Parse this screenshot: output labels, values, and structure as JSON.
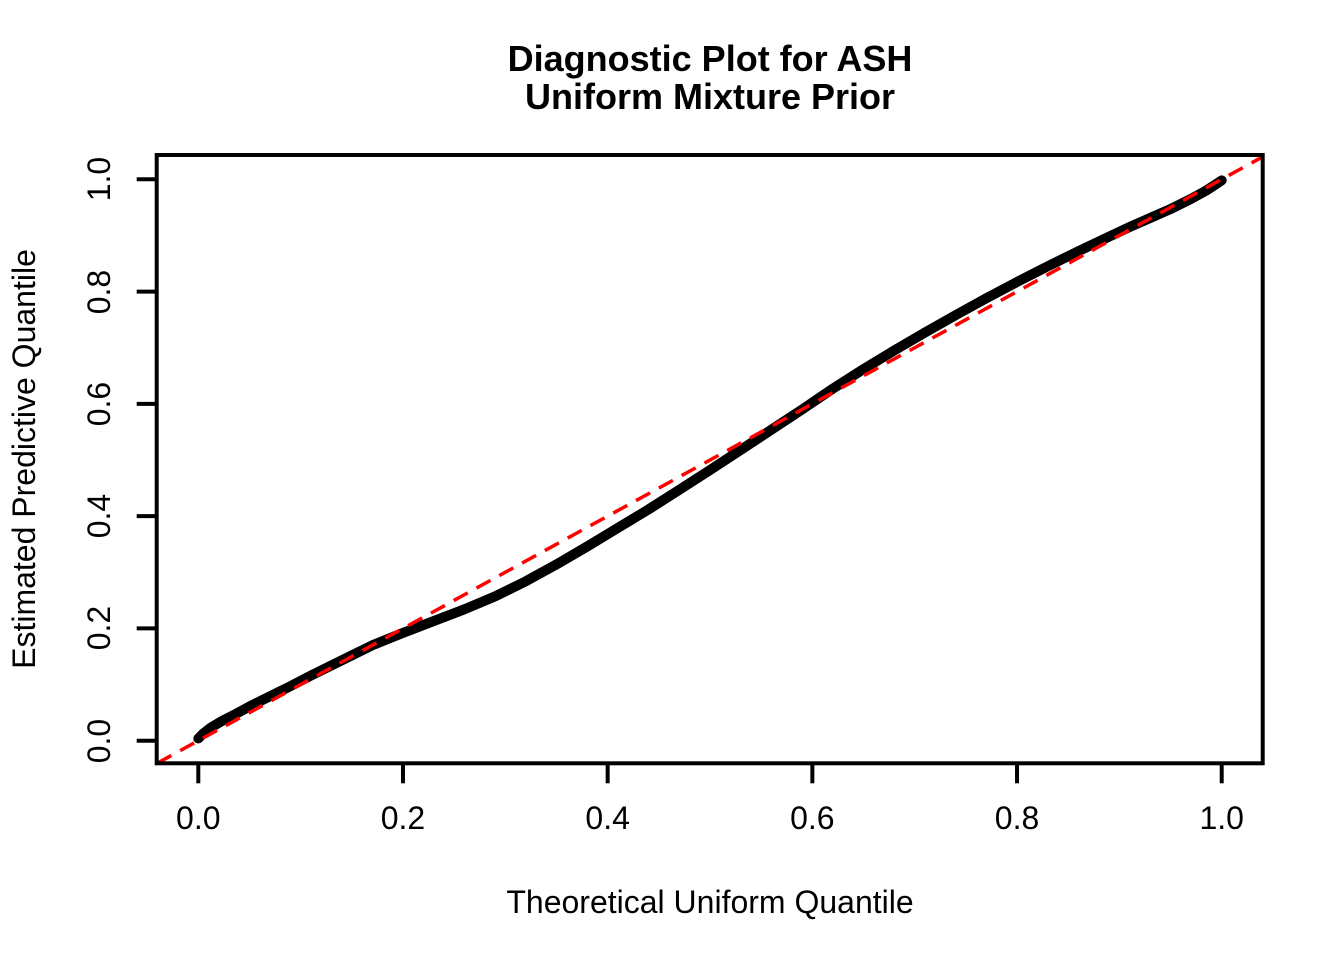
{
  "title": {
    "line1": "Diagnostic Plot for ASH",
    "line2": "Uniform Mixture Prior"
  },
  "axes": {
    "x": {
      "label": "Theoretical Uniform Quantile",
      "ticks": [
        "0.0",
        "0.2",
        "0.4",
        "0.6",
        "0.8",
        "1.0"
      ],
      "tick_values": [
        0.0,
        0.2,
        0.4,
        0.6,
        0.8,
        1.0
      ]
    },
    "y": {
      "label": "Estimated Predictive Quantile",
      "ticks": [
        "0.0",
        "0.2",
        "0.4",
        "0.6",
        "0.8",
        "1.0"
      ],
      "tick_values": [
        0.0,
        0.2,
        0.4,
        0.6,
        0.8,
        1.0
      ]
    }
  },
  "chart_data": {
    "type": "line",
    "title": "Diagnostic Plot for ASH / Uniform Mixture Prior",
    "xlabel": "Theoretical Uniform Quantile",
    "ylabel": "Estimated Predictive Quantile",
    "xlim": [
      -0.04,
      1.04
    ],
    "ylim": [
      -0.04,
      1.04
    ],
    "grid": false,
    "legend": "none",
    "series": [
      {
        "name": "estimated-predictive-quantiles",
        "style": "thick-point-band",
        "color": "#000000",
        "x": [
          0.0,
          0.005,
          0.012,
          0.022,
          0.035,
          0.05,
          0.07,
          0.09,
          0.11,
          0.13,
          0.15,
          0.17,
          0.2,
          0.23,
          0.26,
          0.29,
          0.32,
          0.35,
          0.38,
          0.41,
          0.44,
          0.47,
          0.5,
          0.53,
          0.56,
          0.59,
          0.62,
          0.65,
          0.68,
          0.71,
          0.74,
          0.77,
          0.8,
          0.83,
          0.86,
          0.89,
          0.91,
          0.93,
          0.95,
          0.97,
          0.985,
          0.995,
          1.0
        ],
        "y": [
          0.004,
          0.013,
          0.023,
          0.034,
          0.046,
          0.061,
          0.079,
          0.097,
          0.116,
          0.134,
          0.152,
          0.17,
          0.192,
          0.213,
          0.234,
          0.257,
          0.284,
          0.314,
          0.346,
          0.379,
          0.412,
          0.447,
          0.482,
          0.518,
          0.554,
          0.59,
          0.627,
          0.662,
          0.695,
          0.727,
          0.758,
          0.788,
          0.817,
          0.845,
          0.872,
          0.898,
          0.915,
          0.931,
          0.947,
          0.965,
          0.98,
          0.992,
          0.998
        ]
      },
      {
        "name": "reference-line-y-equals-x",
        "style": "dashed-line",
        "color": "#FF0000",
        "x": [
          -0.04,
          1.04
        ],
        "y": [
          -0.04,
          1.04
        ]
      }
    ]
  }
}
